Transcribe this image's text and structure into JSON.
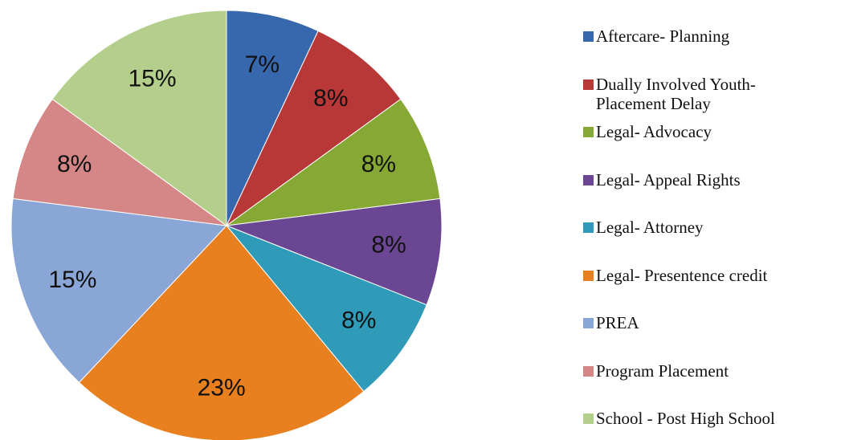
{
  "chart_data": {
    "type": "pie",
    "categories": [
      "Aftercare- Planning",
      "Dually Involved Youth- Placement Delay",
      "Legal- Advocacy",
      "Legal- Appeal Rights",
      "Legal- Attorney",
      "Legal- Presentence credit",
      "PREA",
      "Program Placement",
      "School - Post High School"
    ],
    "values": [
      7,
      8,
      8,
      8,
      8,
      23,
      15,
      8,
      15
    ],
    "value_labels": [
      "7%",
      "8%",
      "8%",
      "8%",
      "8%",
      "23%",
      "15%",
      "8%",
      "15%"
    ],
    "colors": [
      "#3767ad",
      "#b83838",
      "#86a834",
      "#6b4692",
      "#2f9bb8",
      "#e8801f",
      "#8aa6d6",
      "#d58787",
      "#b3cf8b"
    ],
    "legend": "right"
  }
}
